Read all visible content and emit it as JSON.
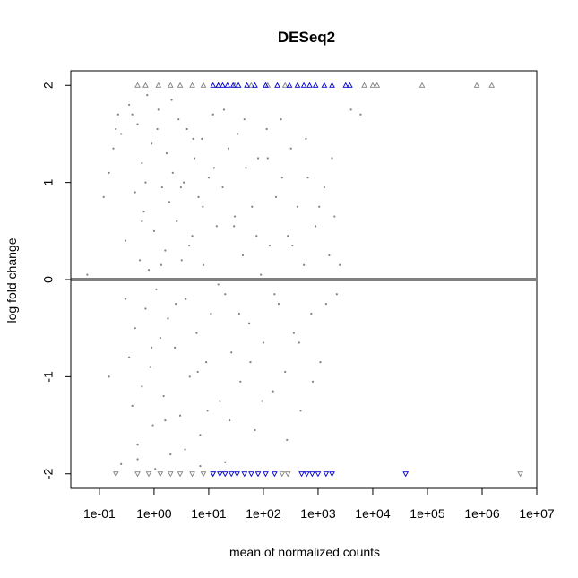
{
  "chart_data": {
    "type": "scatter",
    "title": "DESeq2",
    "xlabel": "mean of normalized counts",
    "ylabel": "log fold change",
    "x_scale": "log10",
    "xlim": [
      0.03,
      10000000
    ],
    "ylim": [
      -2.15,
      2.15
    ],
    "x_ticks": [
      {
        "value": 0.1,
        "label": "1e-01"
      },
      {
        "value": 1,
        "label": "1e+00"
      },
      {
        "value": 10,
        "label": "1e+01"
      },
      {
        "value": 100,
        "label": "1e+02"
      },
      {
        "value": 1000,
        "label": "1e+03"
      },
      {
        "value": 10000,
        "label": "1e+04"
      },
      {
        "value": 100000,
        "label": "1e+05"
      },
      {
        "value": 1000000,
        "label": "1e+06"
      },
      {
        "value": 10000000,
        "label": "1e+07"
      }
    ],
    "y_ticks": [
      {
        "value": -2,
        "label": "-2"
      },
      {
        "value": -1,
        "label": "-1"
      },
      {
        "value": 0,
        "label": "0"
      },
      {
        "value": 1,
        "label": "1"
      },
      {
        "value": 2,
        "label": "2"
      }
    ],
    "colors": {
      "not_significant": "#808080",
      "significant": "#0000cc",
      "zero_line": "#808080"
    },
    "reference_line": {
      "y": 0
    },
    "series": [
      {
        "role": "not_significant",
        "marker": "dot",
        "points": [
          [
            0.06,
            0.05
          ],
          [
            0.12,
            0.85
          ],
          [
            0.15,
            1.1
          ],
          [
            0.18,
            1.35
          ],
          [
            0.2,
            1.55
          ],
          [
            0.22,
            1.7
          ],
          [
            0.25,
            1.5
          ],
          [
            0.3,
            0.4
          ],
          [
            0.3,
            -0.2
          ],
          [
            0.35,
            -0.8
          ],
          [
            0.35,
            1.8
          ],
          [
            0.4,
            1.7
          ],
          [
            0.4,
            -1.3
          ],
          [
            0.45,
            0.9
          ],
          [
            0.45,
            -0.5
          ],
          [
            0.5,
            1.6
          ],
          [
            0.5,
            -1.7
          ],
          [
            0.55,
            0.2
          ],
          [
            0.6,
            1.2
          ],
          [
            0.6,
            -1.1
          ],
          [
            0.65,
            0.7
          ],
          [
            0.7,
            -0.3
          ],
          [
            0.75,
            1.9
          ],
          [
            0.8,
            0.1
          ],
          [
            0.85,
            -0.9
          ],
          [
            0.9,
            1.4
          ],
          [
            0.95,
            -1.5
          ],
          [
            1,
            0.5
          ],
          [
            1.1,
            -0.1
          ],
          [
            1.2,
            1.75
          ],
          [
            1.3,
            -0.6
          ],
          [
            1.4,
            0.95
          ],
          [
            1.5,
            -1.2
          ],
          [
            1.6,
            0.3
          ],
          [
            1.7,
            1.3
          ],
          [
            1.8,
            -0.4
          ],
          [
            1.9,
            0.8
          ],
          [
            2,
            -1.8
          ],
          [
            2.2,
            1.1
          ],
          [
            2.4,
            -0.7
          ],
          [
            2.6,
            0.6
          ],
          [
            2.8,
            1.65
          ],
          [
            3,
            -1.4
          ],
          [
            3.2,
            0.2
          ],
          [
            3.5,
            1.0
          ],
          [
            3.8,
            -0.2
          ],
          [
            4,
            1.55
          ],
          [
            4.5,
            -1.0
          ],
          [
            5,
            0.45
          ],
          [
            5.5,
            1.25
          ],
          [
            6,
            -0.55
          ],
          [
            6.5,
            0.85
          ],
          [
            7,
            -1.6
          ],
          [
            7.5,
            1.45
          ],
          [
            8,
            0.15
          ],
          [
            9,
            -0.85
          ],
          [
            10,
            1.05
          ],
          [
            11,
            -0.35
          ],
          [
            12,
            1.7
          ],
          [
            14,
            0.55
          ],
          [
            16,
            -1.25
          ],
          [
            18,
            0.95
          ],
          [
            20,
            -0.15
          ],
          [
            23,
            1.35
          ],
          [
            26,
            -0.75
          ],
          [
            30,
            0.65
          ],
          [
            34,
            1.5
          ],
          [
            38,
            -1.05
          ],
          [
            42,
            0.25
          ],
          [
            48,
            1.15
          ],
          [
            55,
            -0.45
          ],
          [
            62,
            0.75
          ],
          [
            70,
            -1.55
          ],
          [
            80,
            1.25
          ],
          [
            90,
            0.05
          ],
          [
            100,
            -0.65
          ],
          [
            115,
            1.55
          ],
          [
            130,
            0.35
          ],
          [
            150,
            -1.15
          ],
          [
            170,
            0.85
          ],
          [
            190,
            -0.25
          ],
          [
            220,
            1.05
          ],
          [
            250,
            -0.95
          ],
          [
            280,
            0.45
          ],
          [
            320,
            1.35
          ],
          [
            360,
            -0.55
          ],
          [
            420,
            0.75
          ],
          [
            480,
            -1.35
          ],
          [
            550,
            0.15
          ],
          [
            650,
            1.05
          ],
          [
            750,
            -0.35
          ],
          [
            900,
            0.55
          ],
          [
            1100,
            -0.85
          ],
          [
            1300,
            0.95
          ],
          [
            1600,
            0.25
          ],
          [
            2000,
            0.65
          ],
          [
            2500,
            0.15
          ],
          [
            4000,
            1.75
          ],
          [
            6000,
            1.7
          ],
          [
            1.05,
            -1.95
          ],
          [
            0.25,
            -1.9
          ],
          [
            0.15,
            -1.0
          ],
          [
            0.5,
            -1.85
          ],
          [
            7,
            -1.92
          ],
          [
            20,
            -1.88
          ],
          [
            0.6,
            0.6
          ],
          [
            0.7,
            1.0
          ],
          [
            0.9,
            -0.7
          ],
          [
            1.15,
            1.55
          ],
          [
            1.35,
            0.15
          ],
          [
            1.6,
            -1.45
          ],
          [
            2.1,
            1.85
          ],
          [
            2.5,
            -0.25
          ],
          [
            3.1,
            0.95
          ],
          [
            3.7,
            -1.75
          ],
          [
            4.4,
            0.35
          ],
          [
            5.2,
            1.45
          ],
          [
            6.3,
            -0.95
          ],
          [
            7.8,
            0.75
          ],
          [
            9.5,
            -1.35
          ],
          [
            12.5,
            1.15
          ],
          [
            15,
            -0.05
          ],
          [
            19,
            1.75
          ],
          [
            24,
            -1.45
          ],
          [
            29,
            0.55
          ],
          [
            36,
            -0.35
          ],
          [
            45,
            1.65
          ],
          [
            58,
            -0.85
          ],
          [
            75,
            0.45
          ],
          [
            95,
            -1.25
          ],
          [
            120,
            1.25
          ],
          [
            160,
            -0.15
          ],
          [
            210,
            1.65
          ],
          [
            270,
            -1.65
          ],
          [
            340,
            0.35
          ],
          [
            450,
            -0.65
          ],
          [
            600,
            1.45
          ],
          [
            800,
            -1.05
          ],
          [
            1050,
            0.75
          ],
          [
            1400,
            -0.25
          ],
          [
            1800,
            1.25
          ],
          [
            2200,
            -0.15
          ]
        ]
      },
      {
        "role": "not_significant_capped_top",
        "marker": "triangle-up",
        "points": [
          [
            0.5,
            2
          ],
          [
            0.7,
            2
          ],
          [
            1.2,
            2
          ],
          [
            2,
            2
          ],
          [
            3,
            2
          ],
          [
            5,
            2
          ],
          [
            8,
            2
          ],
          [
            15,
            2
          ],
          [
            30,
            2
          ],
          [
            60,
            2
          ],
          [
            120,
            2
          ],
          [
            250,
            2
          ],
          [
            7000,
            2
          ],
          [
            10000,
            2
          ],
          [
            12000,
            2
          ],
          [
            80000,
            2
          ],
          [
            800000,
            2
          ],
          [
            1500000,
            2
          ]
        ]
      },
      {
        "role": "not_significant_capped_bottom",
        "marker": "triangle-down",
        "points": [
          [
            0.2,
            -2
          ],
          [
            0.5,
            -2
          ],
          [
            0.8,
            -2
          ],
          [
            1.3,
            -2
          ],
          [
            2,
            -2
          ],
          [
            3,
            -2
          ],
          [
            5,
            -2
          ],
          [
            8,
            -2
          ],
          [
            12,
            -2
          ],
          [
            220,
            -2
          ],
          [
            280,
            -2
          ],
          [
            5000000,
            -2
          ]
        ]
      },
      {
        "role": "significant_capped_top",
        "marker": "triangle-up",
        "points": [
          [
            12,
            2
          ],
          [
            15,
            2
          ],
          [
            18,
            2
          ],
          [
            22,
            2
          ],
          [
            28,
            2
          ],
          [
            35,
            2
          ],
          [
            50,
            2
          ],
          [
            70,
            2
          ],
          [
            110,
            2
          ],
          [
            180,
            2
          ],
          [
            300,
            2
          ],
          [
            420,
            2
          ],
          [
            550,
            2
          ],
          [
            700,
            2
          ],
          [
            900,
            2
          ],
          [
            1300,
            2
          ],
          [
            1800,
            2
          ],
          [
            3200,
            2
          ],
          [
            3800,
            2
          ]
        ]
      },
      {
        "role": "significant_capped_bottom",
        "marker": "triangle-down",
        "points": [
          [
            12,
            -2
          ],
          [
            16,
            -2
          ],
          [
            20,
            -2
          ],
          [
            26,
            -2
          ],
          [
            33,
            -2
          ],
          [
            45,
            -2
          ],
          [
            60,
            -2
          ],
          [
            80,
            -2
          ],
          [
            110,
            -2
          ],
          [
            160,
            -2
          ],
          [
            500,
            -2
          ],
          [
            620,
            -2
          ],
          [
            780,
            -2
          ],
          [
            1000,
            -2
          ],
          [
            1400,
            -2
          ],
          [
            1800,
            -2
          ],
          [
            40000,
            -2
          ]
        ]
      }
    ]
  }
}
